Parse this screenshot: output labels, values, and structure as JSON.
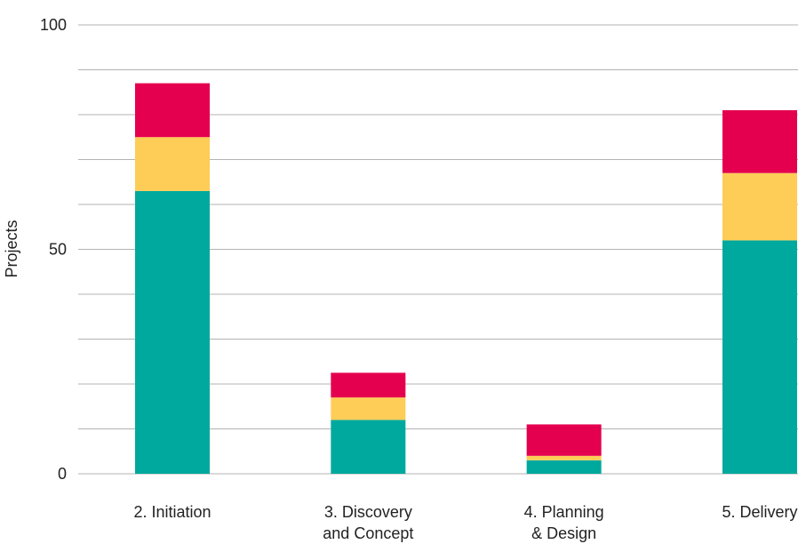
{
  "chart_data": {
    "type": "bar",
    "stacked": true,
    "categories": [
      [
        "2. Initiation"
      ],
      [
        "3. Discovery",
        "and Concept"
      ],
      [
        "4. Planning",
        "& Design"
      ],
      [
        "5. Delivery"
      ]
    ],
    "series": [
      {
        "color": "#00a99d",
        "values": [
          63,
          12,
          3,
          52
        ]
      },
      {
        "color": "#fecd57",
        "values": [
          12,
          5,
          1,
          15
        ]
      },
      {
        "color": "#e4004f",
        "values": [
          12,
          5.5,
          7,
          14
        ]
      }
    ],
    "ylabel": "Projects",
    "ylim": [
      0,
      100
    ],
    "yticks": [
      0,
      50,
      100
    ],
    "gridlines": [
      0,
      10,
      20,
      30,
      40,
      50,
      60,
      70,
      80,
      90,
      100
    ],
    "grid": true,
    "legend": false
  }
}
